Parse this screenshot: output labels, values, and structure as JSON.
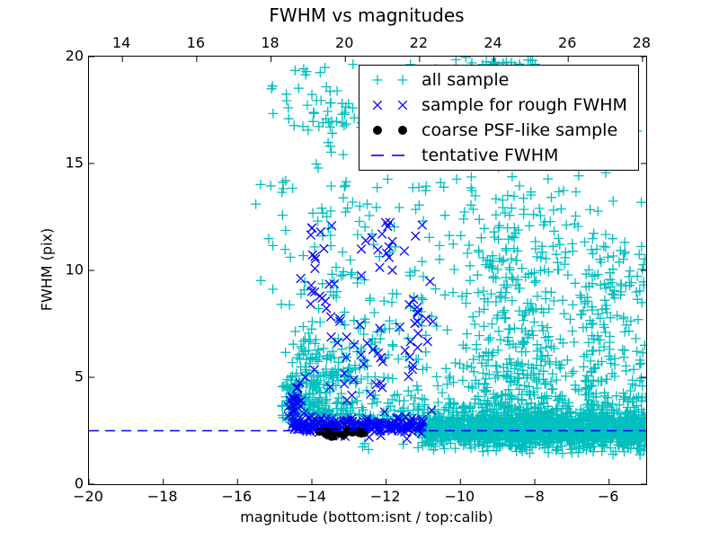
{
  "chart_data": {
    "type": "scatter",
    "title": "FWHM vs magnitudes",
    "xlabel": "magnitude (bottom:isnt / top:calib)",
    "ylabel": "FWHM (pix)",
    "xlim": [
      -20,
      -5
    ],
    "ylim": [
      0,
      20
    ],
    "x_ticks_bottom": [
      -20,
      -18,
      -16,
      -14,
      -12,
      -10,
      -8,
      -6
    ],
    "x_ticks_top": [
      14,
      16,
      18,
      20,
      22,
      24,
      26,
      28
    ],
    "top_axis_offset": 33.1,
    "y_ticks": [
      0,
      5,
      10,
      15,
      20
    ],
    "grid": false,
    "legend_position": "upper right",
    "seed": 42,
    "tentative_fwhm": 2.5,
    "series": [
      {
        "name": "all sample",
        "marker": "plus",
        "color": "#00bfbf",
        "clusters": [
          {
            "n": 950,
            "x": [
              "u",
              -11.15,
              -5.0
            ],
            "y": [
              "n",
              2.55,
              0.5,
              1.5,
              4.6
            ]
          },
          {
            "n": 420,
            "x": [
              "u",
              -11.05,
              -5.0
            ],
            "y": [
              "n",
              2.5,
              0.22,
              1.9,
              3.2
            ]
          },
          {
            "n": 70,
            "x": [
              "u",
              -9.6,
              -5.05
            ],
            "y": [
              "u",
              1.35,
              2.3
            ]
          },
          {
            "n": 620,
            "x": [
              "n",
              -8.4,
              1.15,
              -10.9,
              -5.1
            ],
            "y": [
              "p",
              3.0,
              10.8,
              2.3
            ]
          },
          {
            "n": 300,
            "x": [
              "u",
              -14.85,
              -10.9
            ],
            "y": [
              "p",
              3.0,
              11.0,
              1.9
            ]
          },
          {
            "n": 150,
            "x": [
              "n",
              -13.7,
              0.55,
              -14.8,
              -12.4
            ],
            "y": [
              "p",
              3.2,
              3.6,
              1.6
            ]
          },
          {
            "n": 60,
            "x": [
              "n",
              -14.35,
              0.28,
              -14.75,
              -13.5
            ],
            "y": [
              "n",
              3.7,
              0.8,
              2.6,
              5.8
            ]
          },
          {
            "n": 120,
            "x": [
              "u",
              -15.2,
              -5.15
            ],
            "y": [
              "u",
              13.6,
              19.8
            ]
          },
          {
            "n": 22,
            "x": [
              "n",
              -13.5,
              0.28,
              -14.2,
              -12.9
            ],
            "y": [
              "n",
              17.4,
              0.5,
              16.3,
              18.4
            ]
          },
          {
            "n": 30,
            "x": [
              "n",
              -8.9,
              0.6,
              -10.2,
              -7.6
            ],
            "y": [
              "u",
              19.2,
              20.0
            ]
          },
          {
            "n": 200,
            "x": [
              "u",
              -6.7,
              -5.02
            ],
            "y": [
              "p",
              3.0,
              8.5,
              1.8
            ]
          },
          {
            "n": 7,
            "x": [
              "u",
              -15.6,
              -14.9
            ],
            "y": [
              "u",
              8.0,
              17.5
            ]
          },
          {
            "n": 4,
            "x": [
              "u",
              -13.8,
              -11.3
            ],
            "y": [
              "u",
              1.5,
              2.1
            ]
          }
        ]
      },
      {
        "name": "sample for rough FWHM",
        "marker": "cross",
        "color": "#0000ff",
        "clusters": [
          {
            "n": 210,
            "x": [
              "u",
              -14.55,
              -11.0
            ],
            "y": [
              "n",
              2.75,
              0.17,
              2.35,
              3.35
            ]
          },
          {
            "n": 28,
            "x": [
              "n",
              -14.45,
              0.12,
              -14.65,
              -14.15
            ],
            "y": [
              "n",
              3.7,
              0.55,
              2.9,
              4.9
            ]
          },
          {
            "n": 16,
            "x": [
              "n",
              -11.15,
              0.22,
              -11.5,
              -10.7
            ],
            "y": [
              "n",
              7.5,
              1.3,
              4.5,
              9.5
            ]
          },
          {
            "n": 14,
            "x": [
              "n",
              -12.1,
              0.5,
              -12.9,
              -11.3
            ],
            "y": [
              "n",
              11.2,
              0.8,
              9.5,
              12.6
            ]
          },
          {
            "n": 14,
            "x": [
              "n",
              -12.6,
              0.4,
              -13.3,
              -11.9
            ],
            "y": [
              "n",
              5.5,
              1.0,
              3.6,
              7.4
            ]
          },
          {
            "n": 12,
            "x": [
              "n",
              -13.9,
              0.3,
              -14.4,
              -13.3
            ],
            "y": [
              "n",
              9.8,
              1.4,
              7.0,
              12.2
            ]
          },
          {
            "n": 34,
            "x": [
              "u",
              -14.4,
              -10.75
            ],
            "y": [
              "u",
              3.3,
              12.5
            ]
          },
          {
            "n": 6,
            "x": [
              "u",
              -13.6,
              -11.2
            ],
            "y": [
              "u",
              2.0,
              2.35
            ]
          }
        ]
      },
      {
        "name": "coarse PSF-like sample",
        "marker": "dot",
        "color": "#000000",
        "clusters": [
          {
            "n": 26,
            "x": [
              "u",
              -13.82,
              -12.38
            ],
            "y": [
              "n",
              2.42,
              0.07,
              2.28,
              2.56
            ]
          },
          {
            "n": 2,
            "x": [
              "u",
              -13.65,
              -13.4
            ],
            "y": [
              "u",
              2.12,
              2.26
            ]
          }
        ]
      }
    ],
    "line_series": [
      {
        "name": "tentative FWHM",
        "style": "dashed",
        "color": "#0000ff",
        "y": 2.5
      }
    ]
  },
  "legend": {
    "entries": [
      {
        "marker": "plus",
        "color": "#00bfbf",
        "label": "all sample"
      },
      {
        "marker": "cross",
        "color": "#0000ff",
        "label": "sample for rough FWHM"
      },
      {
        "marker": "dot",
        "color": "#000000",
        "label": "coarse PSF-like sample"
      },
      {
        "marker": "dashes",
        "color": "#0000ff",
        "label": "tentative FWHM"
      }
    ]
  }
}
